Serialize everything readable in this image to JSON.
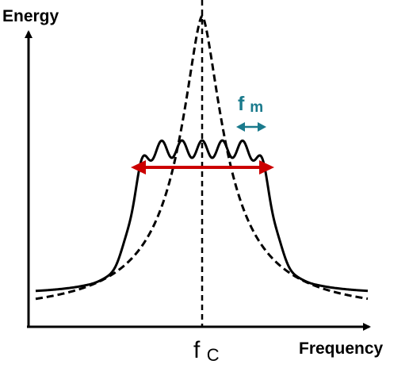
{
  "labels": {
    "y_axis": "Energy",
    "x_axis": "Frequency",
    "carrier": {
      "main": "f",
      "sub": "C"
    },
    "modulation": {
      "main": "f",
      "sub": "m"
    }
  },
  "curves": [
    {
      "name": "modulated-spectrum",
      "style": "solid"
    },
    {
      "name": "carrier-spectrum",
      "style": "dashed"
    }
  ],
  "colors": {
    "axis": "#000000",
    "curve": "#000000",
    "bandwidth_arrow": "#cc0000",
    "modulation_arrow": "#1a7a8c",
    "modulation_label": "#1a7a8c"
  }
}
